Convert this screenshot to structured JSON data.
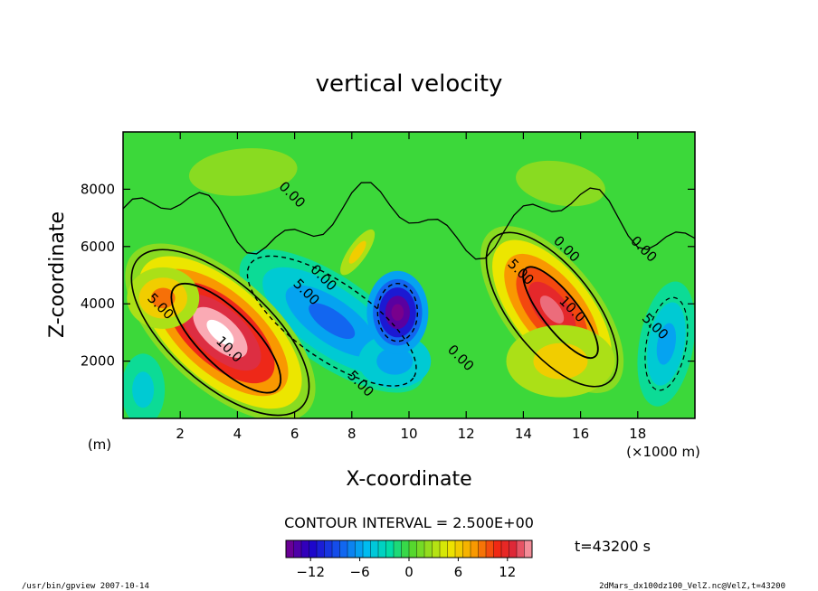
{
  "chart_data": {
    "type": "heatmap",
    "title": "vertical velocity",
    "xlabel": "X-coordinate",
    "ylabel": "Z-coordinate",
    "x_unit_left": "(m)",
    "x_unit_right": "(×1000 m)",
    "xlim": [
      0,
      20
    ],
    "ylim": [
      0,
      10000
    ],
    "x_ticks": [
      "2",
      "4",
      "6",
      "8",
      "10",
      "12",
      "14",
      "16",
      "18"
    ],
    "y_ticks": [
      "2000",
      "4000",
      "6000",
      "8000"
    ],
    "contour_interval_text": "CONTOUR INTERVAL = 2.500E+00",
    "time_text": "t=43200 s",
    "colorbar": {
      "vmin": -15,
      "vmax": 15,
      "tick_labels": [
        "−12",
        "−6",
        "0",
        "6",
        "12"
      ]
    },
    "contour_labels": [
      {
        "text": "0.00",
        "x": 5.8,
        "y": 7700
      },
      {
        "text": "5.00",
        "x": 1.2,
        "y": 3800
      },
      {
        "text": "10.0",
        "x": 3.6,
        "y": 2300
      },
      {
        "text": "5.00",
        "x": 6.3,
        "y": 4300
      },
      {
        "text": "0.00",
        "x": 6.9,
        "y": 4800
      },
      {
        "text": "5.00",
        "x": 8.2,
        "y": 1100
      },
      {
        "text": "0.00",
        "x": 11.7,
        "y": 2000
      },
      {
        "text": "5.00",
        "x": 13.8,
        "y": 5000
      },
      {
        "text": "0.00",
        "x": 15.4,
        "y": 5800
      },
      {
        "text": "10.0",
        "x": 15.6,
        "y": 3700
      },
      {
        "text": "0.00",
        "x": 18.1,
        "y": 5800
      },
      {
        "text": "5.00",
        "x": 18.5,
        "y": 3100
      }
    ],
    "features": [
      {
        "name": "updraft-left",
        "x0": 1.2,
        "y0": 5200,
        "x1": 5.6,
        "y1": 600,
        "peak": 17
      },
      {
        "name": "updraft-right",
        "x0": 13.8,
        "y0": 5300,
        "x1": 16.2,
        "y1": 2300,
        "peak": 14
      },
      {
        "name": "downdraft-mid",
        "x0": 5.5,
        "y0": 4800,
        "x1": 9.6,
        "y1": 1400,
        "peak": -8
      },
      {
        "name": "downdraft-core",
        "x": 9.6,
        "y": 3700,
        "peak": -16
      },
      {
        "name": "downdraft-right",
        "x": 19.2,
        "y": 3000,
        "peak": -6
      }
    ]
  },
  "footer": {
    "left": "/usr/bin/gpview  2007-10-14",
    "right": "2dMars_dx100dz100_VelZ.nc@VelZ,t=43200"
  }
}
